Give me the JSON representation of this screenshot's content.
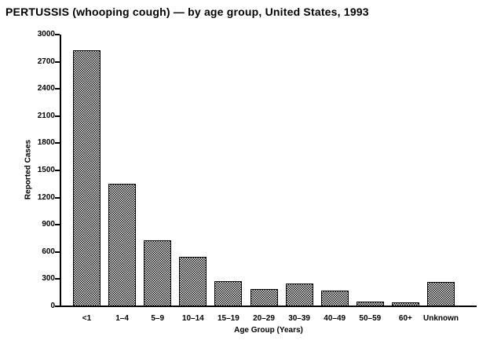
{
  "title": "PERTUSSIS (whooping cough) — by age group, United States, 1993",
  "chart_data": {
    "type": "bar",
    "title": "PERTUSSIS (whooping cough) — by age group, United States, 1993",
    "xlabel": "Age Group (Years)",
    "ylabel": "Reported Cases",
    "categories": [
      "<1",
      "1–4",
      "5–9",
      "10–14",
      "15–19",
      "20–29",
      "30–39",
      "40–49",
      "50–59",
      "60+",
      "Unknown"
    ],
    "values": [
      2825,
      1350,
      730,
      550,
      280,
      190,
      250,
      170,
      50,
      40,
      265
    ],
    "ylim": [
      0,
      3000
    ],
    "ytick_interval": 300,
    "yticks": [
      0,
      300,
      600,
      900,
      1200,
      1500,
      1800,
      2100,
      2400,
      2700,
      3000
    ],
    "grid": false,
    "legend": "none",
    "bar_fill": "checkerboard-dither",
    "bar_outline_color": "#000000",
    "axis_color": "#000000",
    "background_color": "#ffffff"
  }
}
